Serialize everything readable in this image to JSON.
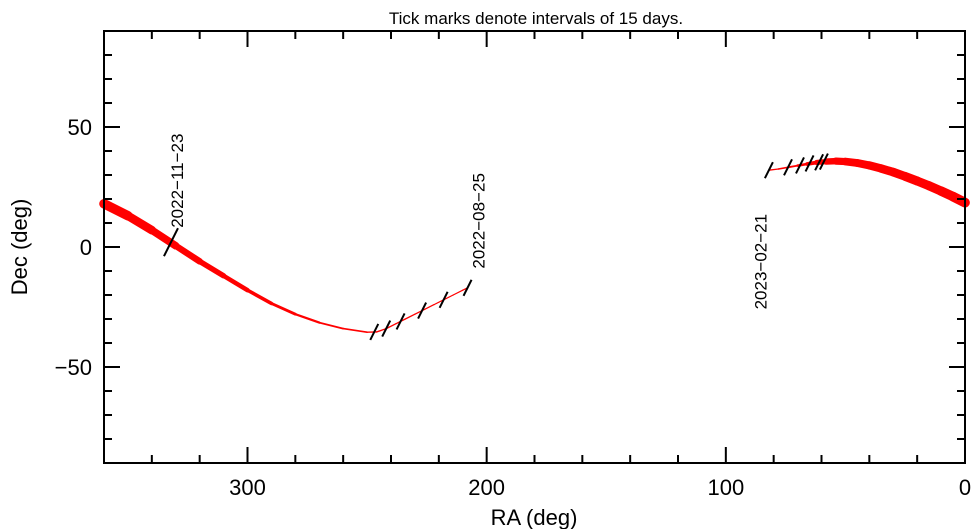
{
  "chart_data": {
    "type": "line",
    "title": "Tick marks denote intervals of 15 days.",
    "xlabel": "RA (deg)",
    "ylabel": "Dec (deg)",
    "xlim": [
      360,
      0
    ],
    "ylim": [
      -90,
      90
    ],
    "x_reversed": true,
    "grid": false,
    "x_ticks": [
      {
        "value": 300,
        "label": "300"
      },
      {
        "value": 200,
        "label": "200"
      },
      {
        "value": 100,
        "label": "100"
      },
      {
        "value": 0,
        "label": "0"
      }
    ],
    "y_ticks": [
      {
        "value": 50,
        "label": "50"
      },
      {
        "value": 0,
        "label": "0"
      },
      {
        "value": -50,
        "label": "−50"
      }
    ],
    "x_minor_step": 20,
    "y_minor_step": 10,
    "series": [
      {
        "color": "#ff0000",
        "ra": [
          360,
          350,
          340,
          330,
          320,
          310,
          300,
          290,
          280,
          270,
          260,
          250,
          246,
          242,
          238,
          234,
          230,
          226,
          222,
          218,
          214,
          210,
          208
        ],
        "dec": [
          18,
          13,
          7,
          0.5,
          -6,
          -12,
          -18,
          -23.5,
          -28,
          -31.5,
          -34,
          -35.5,
          -35.4,
          -34,
          -32,
          -30,
          -28,
          -26,
          -24,
          -22,
          -20,
          -18,
          -17
        ],
        "width": [
          10,
          9,
          8,
          7,
          6,
          5,
          4,
          3.2,
          2.5,
          2,
          1.7,
          1.5,
          1.4,
          1.4,
          1.3,
          1.3,
          1.3,
          1.3,
          1.2,
          1.2,
          1.2,
          1.2,
          1.2
        ]
      },
      {
        "color": "#ff0000",
        "ra": [
          82,
          78,
          74,
          70,
          66,
          62,
          58,
          54,
          50,
          45,
          40,
          35,
          30,
          25,
          20,
          15,
          10,
          5,
          0
        ],
        "dec": [
          32,
          32.5,
          33.2,
          33.9,
          34.6,
          35.2,
          35.6,
          35.8,
          35.6,
          35,
          34,
          32.7,
          31.2,
          29.4,
          27.5,
          25.5,
          23.3,
          21,
          18.5
        ],
        "width": [
          1.2,
          1.4,
          1.7,
          2,
          3,
          4.5,
          6,
          7,
          7.5,
          8,
          8,
          8.5,
          8.5,
          9,
          9,
          9,
          9.5,
          9.5,
          10
        ]
      }
    ],
    "tick_marks": [
      {
        "ra": 332,
        "dec": 2
      },
      {
        "ra": 208,
        "dec": -17
      },
      {
        "ra": 218,
        "dec": -22
      },
      {
        "ra": 227,
        "dec": -26.5
      },
      {
        "ra": 236,
        "dec": -31
      },
      {
        "ra": 242,
        "dec": -34
      },
      {
        "ra": 247,
        "dec": -35.4
      },
      {
        "ra": 82,
        "dec": 32
      },
      {
        "ra": 74,
        "dec": 33.2
      },
      {
        "ra": 69,
        "dec": 34
      },
      {
        "ra": 65,
        "dec": 34.8
      },
      {
        "ra": 61,
        "dec": 35.3
      },
      {
        "ra": 59,
        "dec": 35.6
      }
    ],
    "annotations": [
      {
        "text": "2022−11−23",
        "ra": 327,
        "dec": 8
      },
      {
        "text": "2022−08−25",
        "ra": 201,
        "dec": -9
      },
      {
        "text": "2023−02−21",
        "ra": 83,
        "dec": -26
      }
    ]
  }
}
